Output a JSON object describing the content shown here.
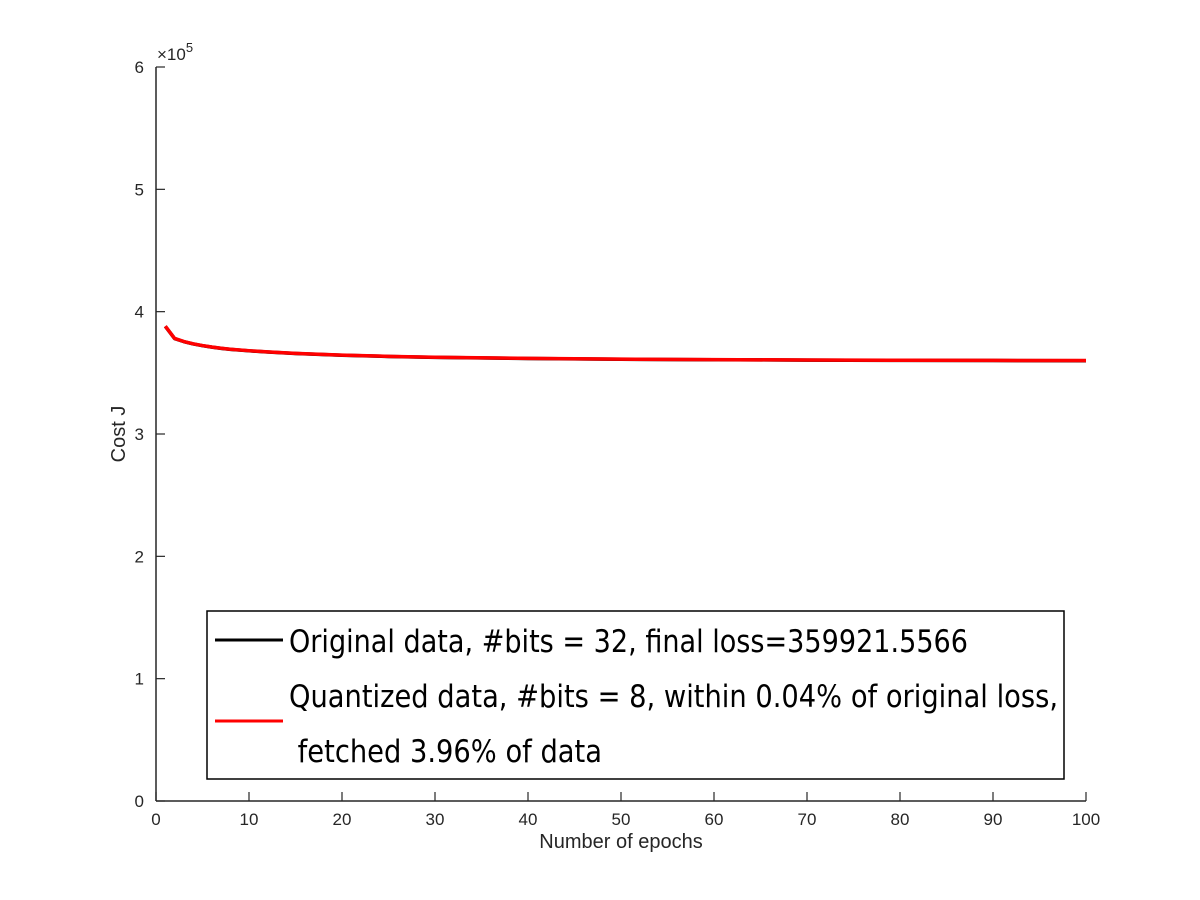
{
  "chart_data": {
    "type": "line",
    "xlabel": "Number of epochs",
    "ylabel": "Cost J",
    "xlim": [
      0,
      100
    ],
    "ylim": [
      0,
      600000
    ],
    "xticks": [
      "0",
      "10",
      "20",
      "30",
      "40",
      "50",
      "60",
      "70",
      "80",
      "90",
      "100"
    ],
    "yticks": [
      "0",
      "1",
      "2",
      "3",
      "4",
      "5",
      "6"
    ],
    "y_exponent": {
      "base": "×10",
      "power": "5"
    },
    "grid": false,
    "legend_position": "bottom-center",
    "x": [
      1,
      2,
      3,
      4,
      5,
      6,
      7,
      8,
      10,
      12,
      15,
      20,
      25,
      30,
      40,
      50,
      60,
      70,
      80,
      90,
      100
    ],
    "series": [
      {
        "name": "Original data, #bits = 32, final loss=359921.5566",
        "color": "#000000",
        "values": [
          388000,
          378000,
          375500,
          373600,
          372200,
          371000,
          370000,
          369200,
          368000,
          367000,
          365800,
          364400,
          363400,
          362600,
          361700,
          361100,
          360700,
          360400,
          360200,
          360050,
          359922
        ]
      },
      {
        "name": "Quantized data, #bits = 8, within 0.04% of original loss, fetched 3.96% of data",
        "name_lines": [
          "Quantized data, #bits = 8, within 0.04% of original loss,",
          " fetched 3.96% of data"
        ],
        "color": "#ff0000",
        "values": [
          388100,
          378100,
          375600,
          373700,
          372300,
          371100,
          370100,
          369300,
          368100,
          367100,
          365900,
          364500,
          363500,
          362700,
          361800,
          361200,
          360800,
          360500,
          360300,
          360150,
          360050
        ]
      }
    ]
  }
}
